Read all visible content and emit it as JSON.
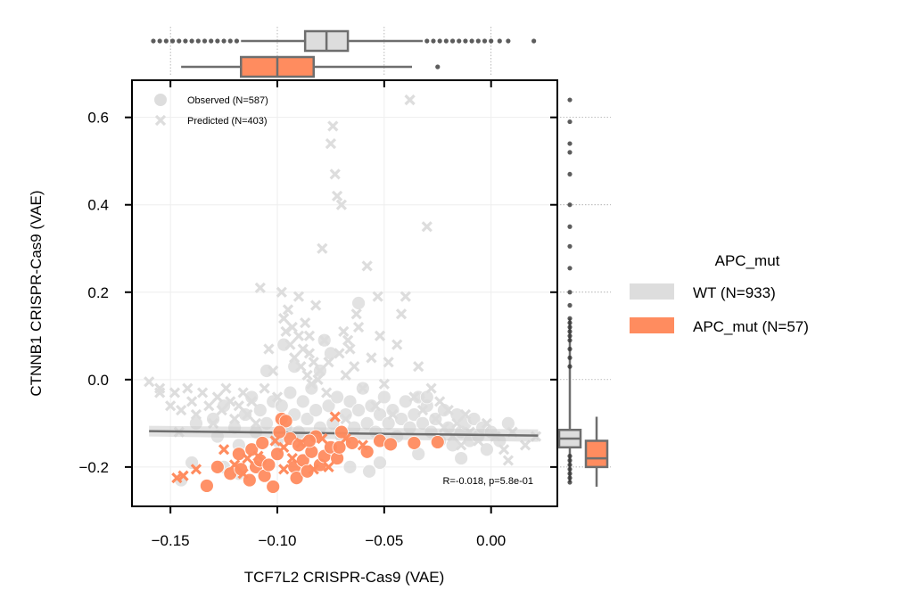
{
  "chart_data": {
    "type": "scatter",
    "xlabel": "TCF7L2 CRISPR-Cas9 (VAE)",
    "ylabel": "CTNNB1 CRISPR-Cas9 (VAE)",
    "xlim": [
      -0.168,
      0.031
    ],
    "ylim": [
      -0.29,
      0.685
    ],
    "xticks": [
      -0.15,
      -0.1,
      -0.05,
      0.0
    ],
    "xtick_labels": [
      "−0.15",
      "−0.10",
      "−0.05",
      "0.00"
    ],
    "yticks": [
      -0.2,
      0.0,
      0.2,
      0.4,
      0.6
    ],
    "ytick_labels": [
      "−0.2",
      "0.0",
      "0.2",
      "0.4",
      "0.6"
    ],
    "grid": true,
    "annotation": "R=-0.018, p=5.8e-01",
    "marker_legend": [
      {
        "label": "Observed (N=587)",
        "marker": "circle"
      },
      {
        "label": "Predicted (N=403)",
        "marker": "x"
      }
    ],
    "hue_legend": {
      "title": "APC_mut",
      "position": "right",
      "entries": [
        {
          "label": "WT (N=933)",
          "color": "#dddddd"
        },
        {
          "label": "APC_mut (N=57)",
          "color": "#ff8c5f"
        }
      ]
    },
    "colors": {
      "wt": "#dddddd",
      "apc_mut": "#ff8c5f",
      "box_edge": "#6e6e6e",
      "regression": "#6e6e6e"
    },
    "regression": {
      "x": [
        -0.16,
        0.022
      ],
      "y": [
        -0.118,
        -0.128
      ]
    },
    "series": [
      {
        "group": "APC_mut",
        "marker": "circle",
        "points": [
          [
            -0.128,
            -0.2
          ],
          [
            -0.122,
            -0.215
          ],
          [
            -0.118,
            -0.17
          ],
          [
            -0.117,
            -0.205
          ],
          [
            -0.113,
            -0.23
          ],
          [
            -0.112,
            -0.16
          ],
          [
            -0.11,
            -0.2
          ],
          [
            -0.108,
            -0.185
          ],
          [
            -0.106,
            -0.22
          ],
          [
            -0.104,
            -0.195
          ],
          [
            -0.102,
            -0.245
          ],
          [
            -0.1,
            -0.17
          ],
          [
            -0.098,
            -0.09
          ],
          [
            -0.096,
            -0.095
          ],
          [
            -0.094,
            -0.135
          ],
          [
            -0.092,
            -0.2
          ],
          [
            -0.091,
            -0.225
          ],
          [
            -0.09,
            -0.15
          ],
          [
            -0.088,
            -0.185
          ],
          [
            -0.086,
            -0.21
          ],
          [
            -0.084,
            -0.165
          ],
          [
            -0.082,
            -0.13
          ],
          [
            -0.08,
            -0.195
          ],
          [
            -0.078,
            -0.175
          ],
          [
            -0.075,
            -0.155
          ],
          [
            -0.072,
            -0.18
          ],
          [
            -0.07,
            -0.12
          ],
          [
            -0.065,
            -0.145
          ],
          [
            -0.058,
            -0.165
          ],
          [
            -0.052,
            -0.14
          ],
          [
            -0.047,
            -0.148
          ],
          [
            -0.036,
            -0.145
          ],
          [
            -0.025,
            -0.143
          ],
          [
            -0.133,
            -0.243
          ],
          [
            -0.107,
            -0.145
          ],
          [
            -0.099,
            -0.12
          ],
          [
            -0.085,
            -0.14
          ],
          [
            -0.071,
            -0.155
          ]
        ]
      },
      {
        "group": "APC_mut",
        "marker": "x",
        "points": [
          [
            -0.147,
            -0.225
          ],
          [
            -0.144,
            -0.22
          ],
          [
            -0.138,
            -0.205
          ],
          [
            -0.125,
            -0.16
          ],
          [
            -0.12,
            -0.195
          ],
          [
            -0.116,
            -0.215
          ],
          [
            -0.114,
            -0.18
          ],
          [
            -0.109,
            -0.175
          ],
          [
            -0.101,
            -0.14
          ],
          [
            -0.097,
            -0.155
          ],
          [
            -0.093,
            -0.18
          ],
          [
            -0.089,
            -0.145
          ],
          [
            -0.083,
            -0.205
          ],
          [
            -0.079,
            -0.135
          ],
          [
            -0.076,
            -0.2
          ],
          [
            -0.073,
            -0.085
          ],
          [
            -0.068,
            -0.135
          ],
          [
            -0.06,
            -0.15
          ],
          [
            -0.097,
            -0.205
          ]
        ]
      },
      {
        "group": "WT",
        "marker": "circle",
        "points": [
          [
            -0.145,
            -0.23
          ],
          [
            -0.14,
            -0.19
          ],
          [
            -0.13,
            -0.09
          ],
          [
            -0.128,
            -0.13
          ],
          [
            -0.125,
            -0.06
          ],
          [
            -0.12,
            -0.11
          ],
          [
            -0.118,
            -0.15
          ],
          [
            -0.115,
            -0.08
          ],
          [
            -0.112,
            -0.04
          ],
          [
            -0.11,
            -0.12
          ],
          [
            -0.108,
            -0.07
          ],
          [
            -0.105,
            -0.1
          ],
          [
            -0.102,
            -0.05
          ],
          [
            -0.1,
            -0.14
          ],
          [
            -0.098,
            -0.06
          ],
          [
            -0.096,
            -0.11
          ],
          [
            -0.094,
            -0.03
          ],
          [
            -0.092,
            -0.08
          ],
          [
            -0.09,
            -0.12
          ],
          [
            -0.088,
            -0.05
          ],
          [
            -0.086,
            -0.09
          ],
          [
            -0.084,
            -0.02
          ],
          [
            -0.082,
            -0.07
          ],
          [
            -0.08,
            -0.11
          ],
          [
            -0.078,
            0.09
          ],
          [
            -0.076,
            -0.06
          ],
          [
            -0.074,
            -0.1
          ],
          [
            -0.072,
            -0.04
          ],
          [
            -0.07,
            -0.13
          ],
          [
            -0.068,
            -0.08
          ],
          [
            -0.066,
            -0.05
          ],
          [
            -0.064,
            -0.11
          ],
          [
            -0.062,
            -0.07
          ],
          [
            -0.06,
            -0.02
          ],
          [
            -0.058,
            -0.1
          ],
          [
            -0.056,
            -0.06
          ],
          [
            -0.054,
            -0.12
          ],
          [
            -0.052,
            -0.08
          ],
          [
            -0.05,
            -0.04
          ],
          [
            -0.048,
            -0.1
          ],
          [
            -0.046,
            -0.07
          ],
          [
            -0.044,
            -0.13
          ],
          [
            -0.042,
            -0.09
          ],
          [
            -0.04,
            -0.05
          ],
          [
            -0.038,
            -0.11
          ],
          [
            -0.036,
            -0.08
          ],
          [
            -0.034,
            -0.04
          ],
          [
            -0.032,
            -0.1
          ],
          [
            -0.03,
            -0.06
          ],
          [
            -0.028,
            -0.12
          ],
          [
            -0.026,
            -0.09
          ],
          [
            -0.024,
            -0.14
          ],
          [
            -0.022,
            -0.07
          ],
          [
            -0.02,
            -0.11
          ],
          [
            -0.018,
            -0.15
          ],
          [
            -0.016,
            -0.08
          ],
          [
            -0.014,
            -0.12
          ],
          [
            -0.012,
            -0.1
          ],
          [
            -0.01,
            -0.14
          ],
          [
            -0.008,
            -0.09
          ],
          [
            -0.006,
            -0.13
          ],
          [
            -0.004,
            -0.11
          ],
          [
            -0.002,
            -0.16
          ],
          [
            0.0,
            -0.12
          ],
          [
            0.004,
            -0.14
          ],
          [
            0.008,
            -0.1
          ],
          [
            -0.062,
            0.175
          ],
          [
            -0.075,
            0.06
          ],
          [
            -0.08,
            0.02
          ],
          [
            -0.092,
            0.03
          ],
          [
            -0.057,
            -0.21
          ],
          [
            -0.066,
            -0.2
          ],
          [
            -0.03,
            -0.04
          ],
          [
            -0.034,
            -0.17
          ],
          [
            -0.118,
            -0.215
          ],
          [
            -0.125,
            -0.2
          ],
          [
            -0.138,
            -0.1
          ],
          [
            -0.105,
            0.02
          ],
          [
            -0.097,
            0.08
          ],
          [
            -0.052,
            -0.19
          ],
          [
            -0.014,
            -0.18
          ]
        ]
      },
      {
        "group": "WT",
        "marker": "x",
        "points": [
          [
            -0.16,
            -0.005
          ],
          [
            -0.155,
            -0.02
          ],
          [
            -0.15,
            -0.06
          ],
          [
            -0.148,
            -0.03
          ],
          [
            -0.145,
            -0.07
          ],
          [
            -0.142,
            -0.02
          ],
          [
            -0.14,
            -0.05
          ],
          [
            -0.138,
            -0.08
          ],
          [
            -0.135,
            -0.03
          ],
          [
            -0.132,
            -0.06
          ],
          [
            -0.13,
            -0.1
          ],
          [
            -0.128,
            -0.04
          ],
          [
            -0.126,
            -0.07
          ],
          [
            -0.124,
            -0.02
          ],
          [
            -0.122,
            -0.05
          ],
          [
            -0.12,
            -0.09
          ],
          [
            -0.118,
            -0.06
          ],
          [
            -0.116,
            -0.03
          ],
          [
            -0.114,
            -0.08
          ],
          [
            -0.112,
            -0.05
          ],
          [
            -0.11,
            -0.1
          ],
          [
            -0.108,
            0.21
          ],
          [
            -0.106,
            -0.02
          ],
          [
            -0.104,
            0.07
          ],
          [
            -0.102,
            0.02
          ],
          [
            -0.1,
            -0.04
          ],
          [
            -0.098,
            0.2
          ],
          [
            -0.097,
            0.14
          ],
          [
            -0.096,
            0.11
          ],
          [
            -0.095,
            0.16
          ],
          [
            -0.094,
            0.08
          ],
          [
            -0.093,
            0.12
          ],
          [
            -0.092,
            0.05
          ],
          [
            -0.09,
            0.1
          ],
          [
            -0.089,
            0.03
          ],
          [
            -0.088,
            0.07
          ],
          [
            -0.087,
            0.13
          ],
          [
            -0.086,
            0.01
          ],
          [
            -0.085,
            0.06
          ],
          [
            -0.084,
            -0.01
          ],
          [
            -0.083,
            0.04
          ],
          [
            -0.082,
            0.17
          ],
          [
            -0.081,
            0.0
          ],
          [
            -0.08,
            0.02
          ],
          [
            -0.079,
            0.3
          ],
          [
            -0.078,
            0.09
          ],
          [
            -0.077,
            -0.03
          ],
          [
            -0.076,
            0.04
          ],
          [
            -0.075,
            0.54
          ],
          [
            -0.074,
            0.58
          ],
          [
            -0.073,
            0.47
          ],
          [
            -0.072,
            0.42
          ],
          [
            -0.071,
            0.06
          ],
          [
            -0.07,
            0.4
          ],
          [
            -0.069,
            0.11
          ],
          [
            -0.068,
            0.01
          ],
          [
            -0.066,
            0.07
          ],
          [
            -0.064,
            0.03
          ],
          [
            -0.062,
            0.12
          ],
          [
            -0.06,
            -0.02
          ],
          [
            -0.058,
            0.26
          ],
          [
            -0.056,
            0.05
          ],
          [
            -0.054,
            -0.06
          ],
          [
            -0.052,
            0.1
          ],
          [
            -0.05,
            -0.01
          ],
          [
            -0.048,
            0.04
          ],
          [
            -0.046,
            -0.08
          ],
          [
            -0.044,
            0.08
          ],
          [
            -0.042,
            0.15
          ],
          [
            -0.04,
            0.19
          ],
          [
            -0.038,
            0.64
          ],
          [
            -0.036,
            -0.04
          ],
          [
            -0.034,
            0.03
          ],
          [
            -0.032,
            -0.07
          ],
          [
            -0.03,
            0.35
          ],
          [
            -0.028,
            -0.02
          ],
          [
            -0.026,
            -0.09
          ],
          [
            -0.024,
            -0.05
          ],
          [
            -0.022,
            -0.11
          ],
          [
            -0.02,
            -0.07
          ],
          [
            -0.018,
            -0.13
          ],
          [
            -0.016,
            -0.1
          ],
          [
            -0.014,
            -0.15
          ],
          [
            -0.012,
            -0.08
          ],
          [
            -0.01,
            -0.12
          ],
          [
            -0.006,
            -0.14
          ],
          [
            -0.002,
            -0.1
          ],
          [
            0.002,
            -0.13
          ],
          [
            0.006,
            -0.16
          ],
          [
            0.01,
            -0.12
          ],
          [
            0.016,
            -0.15
          ],
          [
            0.021,
            -0.13
          ],
          [
            -0.053,
            0.19
          ],
          [
            -0.063,
            0.15
          ],
          [
            -0.067,
            0.09
          ],
          [
            -0.146,
            -0.12
          ],
          [
            -0.155,
            -0.03
          ],
          [
            -0.09,
            0.19
          ],
          [
            -0.085,
            0.1
          ],
          [
            -0.068,
            -0.09
          ],
          [
            0.008,
            -0.185
          ]
        ]
      }
    ],
    "marginal_x_boxplots": [
      {
        "group": "WT",
        "q1": -0.087,
        "median": -0.077,
        "q3": -0.067,
        "whisker_low": -0.117,
        "whisker_high": -0.032,
        "outliers": [
          -0.158,
          -0.155,
          -0.152,
          -0.149,
          -0.146,
          -0.143,
          -0.14,
          -0.137,
          -0.134,
          -0.131,
          -0.128,
          -0.125,
          -0.122,
          -0.119,
          -0.03,
          -0.027,
          -0.024,
          -0.021,
          -0.018,
          -0.015,
          -0.012,
          -0.009,
          -0.006,
          -0.003,
          0.0,
          0.004,
          0.008,
          0.02
        ]
      },
      {
        "group": "APC_mut",
        "q1": -0.117,
        "median": -0.1,
        "q3": -0.083,
        "whisker_low": -0.145,
        "whisker_high": -0.037,
        "outliers": [
          -0.025
        ]
      }
    ],
    "marginal_y_boxplots": [
      {
        "group": "WT",
        "q1": -0.155,
        "median": -0.135,
        "q3": -0.115,
        "whisker_low": -0.235,
        "whisker_high": 0.14,
        "outliers": [
          -0.235,
          -0.225,
          -0.215,
          -0.205,
          -0.195,
          -0.185,
          -0.175,
          0.03,
          0.05,
          0.07,
          0.09,
          0.1,
          0.11,
          0.12,
          0.13,
          0.14,
          0.17,
          0.2,
          0.255,
          0.305,
          0.35,
          0.4,
          0.47,
          0.52,
          0.54,
          0.59,
          0.64
        ]
      },
      {
        "group": "APC_mut",
        "q1": -0.2,
        "median": -0.18,
        "q3": -0.14,
        "whisker_low": -0.245,
        "whisker_high": -0.085,
        "outliers": []
      }
    ]
  }
}
